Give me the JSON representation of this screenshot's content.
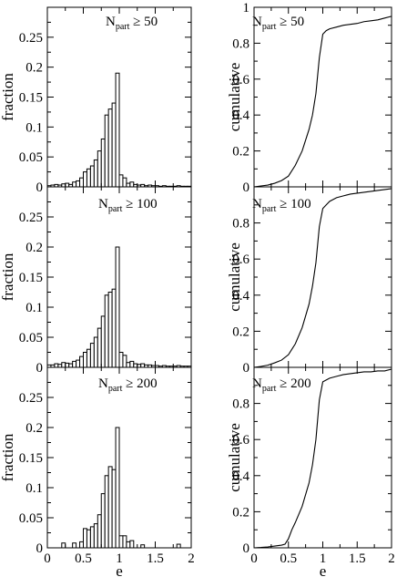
{
  "chart_data": [
    {
      "type": "bar",
      "panel": "left-top",
      "title": {
        "main": "N",
        "sub": "part",
        "rest": " ≥ 50"
      },
      "ylabel": "fraction",
      "xlabel": "",
      "xlim": [
        0,
        2
      ],
      "ylim": [
        0,
        0.3
      ],
      "bin_width": 0.05,
      "x": [
        0.025,
        0.075,
        0.125,
        0.175,
        0.225,
        0.275,
        0.325,
        0.375,
        0.425,
        0.475,
        0.525,
        0.575,
        0.625,
        0.675,
        0.725,
        0.775,
        0.825,
        0.875,
        0.925,
        0.975,
        1.025,
        1.075,
        1.125,
        1.175,
        1.225,
        1.275,
        1.325,
        1.375,
        1.425,
        1.475,
        1.525,
        1.575,
        1.625,
        1.675,
        1.725,
        1.775,
        1.825,
        1.875,
        1.925,
        1.975
      ],
      "values": [
        0.002,
        0.003,
        0.004,
        0.003,
        0.005,
        0.006,
        0.004,
        0.008,
        0.01,
        0.015,
        0.025,
        0.03,
        0.035,
        0.045,
        0.06,
        0.08,
        0.12,
        0.13,
        0.14,
        0.19,
        0.02,
        0.015,
        0.006,
        0.008,
        0.004,
        0.003,
        0.004,
        0.002,
        0.003,
        0.002,
        0.002,
        0.001,
        0.002,
        0.001,
        0.001,
        0.001,
        0.002,
        0.001,
        0.001,
        0.001
      ],
      "xticks": [
        "0",
        "0.5",
        "1",
        "1.5",
        "2"
      ],
      "yticks": [
        "0",
        "0.05",
        "0.1",
        "0.15",
        "0.2",
        "0.25"
      ]
    },
    {
      "type": "line",
      "panel": "right-top",
      "title": {
        "main": "N",
        "sub": "part",
        "rest": " ≥ 50"
      },
      "ylabel": "cumulative",
      "xlabel": "",
      "xlim": [
        0,
        2
      ],
      "ylim": [
        0,
        1
      ],
      "x": [
        0,
        0.1,
        0.2,
        0.3,
        0.4,
        0.5,
        0.6,
        0.7,
        0.8,
        0.85,
        0.9,
        0.95,
        1.0,
        1.05,
        1.1,
        1.2,
        1.3,
        1.4,
        1.5,
        1.6,
        1.7,
        1.8,
        1.9,
        2.0
      ],
      "y": [
        0,
        0.005,
        0.01,
        0.02,
        0.035,
        0.06,
        0.12,
        0.2,
        0.32,
        0.4,
        0.52,
        0.72,
        0.85,
        0.87,
        0.88,
        0.89,
        0.9,
        0.905,
        0.91,
        0.92,
        0.925,
        0.93,
        0.94,
        0.95
      ],
      "xticks": [
        "0",
        "0.5",
        "1",
        "1.5",
        "2"
      ],
      "yticks": [
        "0",
        "0.2",
        "0.4",
        "0.6",
        "0.8",
        "1"
      ]
    },
    {
      "type": "bar",
      "panel": "left-middle",
      "title": {
        "main": "N",
        "sub": "part",
        "rest": " ≥ 100"
      },
      "ylabel": "fraction",
      "xlabel": "",
      "xlim": [
        0,
        2
      ],
      "ylim": [
        0,
        0.3
      ],
      "bin_width": 0.05,
      "x": [
        0.025,
        0.075,
        0.125,
        0.175,
        0.225,
        0.275,
        0.325,
        0.375,
        0.425,
        0.475,
        0.525,
        0.575,
        0.625,
        0.675,
        0.725,
        0.775,
        0.825,
        0.875,
        0.925,
        0.975,
        1.025,
        1.075,
        1.125,
        1.175,
        1.225,
        1.275,
        1.325,
        1.375,
        1.425,
        1.475,
        1.525,
        1.575,
        1.625,
        1.675,
        1.725,
        1.775,
        1.825,
        1.875,
        1.925,
        1.975
      ],
      "values": [
        0.004,
        0.004,
        0.006,
        0.005,
        0.008,
        0.007,
        0.006,
        0.01,
        0.012,
        0.018,
        0.025,
        0.03,
        0.04,
        0.05,
        0.065,
        0.085,
        0.12,
        0.125,
        0.13,
        0.2,
        0.025,
        0.02,
        0.008,
        0.01,
        0.006,
        0.005,
        0.006,
        0.004,
        0.004,
        0.003,
        0.003,
        0.002,
        0.003,
        0.002,
        0.002,
        0.002,
        0.003,
        0.002,
        0.002,
        0.002
      ],
      "xticks": [
        "0",
        "0.5",
        "1",
        "1.5",
        "2"
      ],
      "yticks": [
        "0",
        "0.05",
        "0.1",
        "0.15",
        "0.2",
        "0.25"
      ]
    },
    {
      "type": "line",
      "panel": "right-middle",
      "title": {
        "main": "N",
        "sub": "part",
        "rest": " ≥ 100"
      },
      "ylabel": "cumulative",
      "xlabel": "",
      "xlim": [
        0,
        2
      ],
      "ylim": [
        0,
        1
      ],
      "x": [
        0,
        0.1,
        0.2,
        0.3,
        0.4,
        0.5,
        0.6,
        0.7,
        0.8,
        0.85,
        0.9,
        0.95,
        1.0,
        1.05,
        1.1,
        1.2,
        1.3,
        1.4,
        1.5,
        1.6,
        1.7,
        1.8,
        1.9,
        2.0
      ],
      "y": [
        0,
        0.005,
        0.012,
        0.025,
        0.04,
        0.07,
        0.13,
        0.22,
        0.35,
        0.45,
        0.58,
        0.78,
        0.88,
        0.9,
        0.92,
        0.94,
        0.95,
        0.96,
        0.965,
        0.97,
        0.975,
        0.98,
        0.985,
        0.99
      ],
      "xticks": [
        "0",
        "0.5",
        "1",
        "1.5",
        "2"
      ],
      "yticks": [
        "0",
        "0.2",
        "0.4",
        "0.6",
        "0.8"
      ]
    },
    {
      "type": "bar",
      "panel": "left-bottom",
      "title": {
        "main": "N",
        "sub": "part",
        "rest": " ≥ 200"
      },
      "ylabel": "fraction",
      "xlabel": "e",
      "xlim": [
        0,
        2
      ],
      "ylim": [
        0,
        0.3
      ],
      "bin_width": 0.05,
      "x": [
        0.025,
        0.075,
        0.125,
        0.175,
        0.225,
        0.275,
        0.325,
        0.375,
        0.425,
        0.475,
        0.525,
        0.575,
        0.625,
        0.675,
        0.725,
        0.775,
        0.825,
        0.875,
        0.925,
        0.975,
        1.025,
        1.075,
        1.125,
        1.175,
        1.225,
        1.275,
        1.325,
        1.375,
        1.425,
        1.475,
        1.525,
        1.575,
        1.625,
        1.675,
        1.725,
        1.775,
        1.825,
        1.875,
        1.925,
        1.975
      ],
      "values": [
        0.0,
        0.0,
        0.0,
        0.0,
        0.008,
        0.0,
        0.0,
        0.008,
        0.0,
        0.01,
        0.032,
        0.03,
        0.035,
        0.04,
        0.055,
        0.09,
        0.12,
        0.135,
        0.13,
        0.2,
        0.02,
        0.02,
        0.01,
        0.012,
        0.0,
        0.0,
        0.005,
        0.0,
        0.0,
        0.0,
        0.0,
        0.0,
        0.0,
        0.0,
        0.0,
        0.0,
        0.006,
        0.0,
        0.0,
        0.0
      ],
      "xticks": [
        "0",
        "0.5",
        "1",
        "1.5",
        "2"
      ],
      "yticks": [
        "0",
        "0.05",
        "0.1",
        "0.15",
        "0.2",
        "0.25"
      ]
    },
    {
      "type": "line",
      "panel": "right-bottom",
      "title": {
        "main": "N",
        "sub": "part",
        "rest": " ≥ 200"
      },
      "ylabel": "cumulative",
      "xlabel": "e",
      "xlim": [
        0,
        2
      ],
      "ylim": [
        0,
        1
      ],
      "x": [
        0,
        0.1,
        0.2,
        0.3,
        0.4,
        0.45,
        0.5,
        0.55,
        0.6,
        0.7,
        0.8,
        0.85,
        0.9,
        0.95,
        1.0,
        1.05,
        1.1,
        1.2,
        1.3,
        1.4,
        1.5,
        1.6,
        1.7,
        1.8,
        1.9,
        2.0
      ],
      "y": [
        0,
        0.002,
        0.005,
        0.01,
        0.015,
        0.02,
        0.05,
        0.1,
        0.14,
        0.23,
        0.36,
        0.46,
        0.6,
        0.82,
        0.92,
        0.93,
        0.94,
        0.95,
        0.96,
        0.965,
        0.97,
        0.975,
        0.975,
        0.98,
        0.98,
        0.99
      ],
      "xticks": [
        "0",
        "0.5",
        "1",
        "1.5",
        "2"
      ],
      "yticks": [
        "0",
        "0.2",
        "0.4",
        "0.6",
        "0.8"
      ]
    }
  ]
}
